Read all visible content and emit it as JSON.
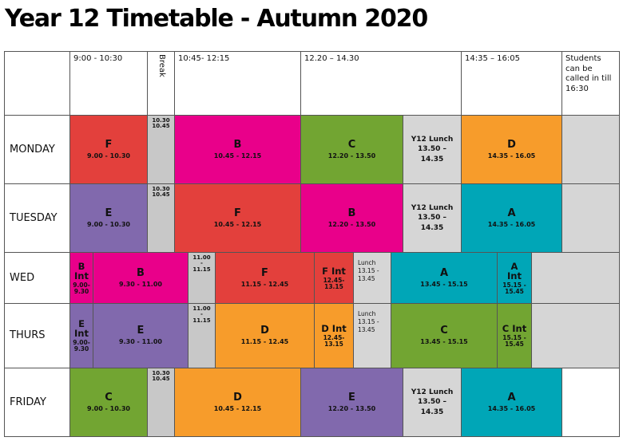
{
  "title": "Year 12 Timetable - Autumn 2020",
  "header": {
    "p1": "9:00 - 10:30",
    "break": "Break",
    "p2": "10:45- 12:15",
    "p3": "12.20 – 14.30",
    "p4": "14:35 – 16:05",
    "extra": "Students can be called in till 16:30"
  },
  "days": [
    "MONDAY",
    "TUESDAY",
    "WED",
    "THURS",
    "FRIDAY"
  ],
  "monday": {
    "f": {
      "s": "F",
      "t": "9.00 - 10.30"
    },
    "brk": "10.30\n10.45",
    "b": {
      "s": "B",
      "t": "10.45 - 12.15"
    },
    "c": {
      "s": "C",
      "t": "12.20 - 13.50"
    },
    "lunch": "Y12 Lunch\n13.50 –\n14.35",
    "d": {
      "s": "D",
      "t": "14.35 - 16.05"
    }
  },
  "tuesday": {
    "e": {
      "s": "E",
      "t": "9.00 - 10.30"
    },
    "brk": "10.30\n10.45",
    "f": {
      "s": "F",
      "t": "10.45 - 12.15"
    },
    "b": {
      "s": "B",
      "t": "12.20 - 13.50"
    },
    "lunch": "Y12 Lunch\n13.50 –\n14.35",
    "a": {
      "s": "A",
      "t": "14.35 - 16.05"
    }
  },
  "wed": {
    "bint": {
      "s": "B\nInt",
      "t": "9.00-\n9.30"
    },
    "b": {
      "s": "B",
      "t": "9.30 - 11.00"
    },
    "brk": "11.00\n-\n11.15",
    "f": {
      "s": "F",
      "t": "11.15 - 12.45"
    },
    "fint": {
      "s": "F Int",
      "t": "12.45-\n13.15"
    },
    "lunch": "Lunch\n13.15 -\n13.45",
    "a": {
      "s": "A",
      "t": "13.45 - 15.15"
    },
    "aint": {
      "s": "A\nInt",
      "t": "15.15 -\n15.45"
    }
  },
  "thurs": {
    "eint": {
      "s": "E\nInt",
      "t": "9.00-\n9.30"
    },
    "e": {
      "s": "E",
      "t": "9.30 - 11.00"
    },
    "brk": "11.00\n-\n11.15",
    "d": {
      "s": "D",
      "t": "11.15 - 12.45"
    },
    "dint": {
      "s": "D Int",
      "t": "12.45-\n13.15"
    },
    "lunch": "Lunch\n13.15 -\n13.45",
    "c": {
      "s": "C",
      "t": "13.45 - 15.15"
    },
    "cint": {
      "s": "C Int",
      "t": "15.15 -\n15.45"
    }
  },
  "friday": {
    "c": {
      "s": "C",
      "t": "9.00 - 10.30"
    },
    "brk": "10.30\n10.45",
    "d": {
      "s": "D",
      "t": "10.45 - 12.15"
    },
    "e": {
      "s": "E",
      "t": "12.20 - 13.50"
    },
    "lunch": "Y12 Lunch\n13.50 –\n14.35",
    "a": {
      "s": "A",
      "t": "14.35 - 16.05"
    }
  }
}
